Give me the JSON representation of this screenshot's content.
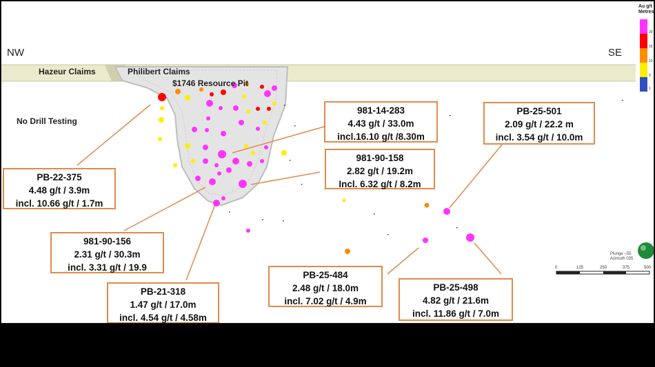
{
  "section": {
    "direction_left": "NW",
    "direction_right": "SE",
    "claim_labels": [
      "Hazeur Claims",
      "Philibert Claims"
    ],
    "pit_label": "$1746 Resource Pit",
    "no_drill_label": "No Drill Testing"
  },
  "legend": {
    "title_line1": "Au g/t",
    "title_line2": "Metres",
    "ticks": [
      "20",
      "15",
      "10",
      "5",
      "1"
    ],
    "colors": [
      "#ff33ff",
      "#ff0000",
      "#ff8c00",
      "#ffee00",
      "#3050c0"
    ]
  },
  "callouts": [
    {
      "id": "PB-22-375",
      "lines": [
        "PB-22-375",
        "4.48 g/t  / 3.9m",
        "incl. 10.66 g/t / 1.7m"
      ]
    },
    {
      "id": "981-14-283",
      "lines": [
        "981-14-283",
        "4.43 g/t / 33.0m",
        "incl.16.10 g/t /8.30m"
      ]
    },
    {
      "id": "PB-25-501",
      "lines": [
        "PB-25-501",
        "2.09 g/t / 22.2 m",
        "incl. 3.54 g/t / 10.0m"
      ]
    },
    {
      "id": "981-90-158",
      "lines": [
        "981-90-158",
        "2.82 g/t / 19.2m",
        "Incl. 6.32 g/t / 8.2m"
      ]
    },
    {
      "id": "981-90-156",
      "lines": [
        "981-90-156",
        "2.31 g/t  / 30.3m",
        "incl. 3.31 g/t / 19.9"
      ]
    },
    {
      "id": "PB-21-318",
      "lines": [
        "PB-21-318",
        "1.47 g/t / 17.0m",
        "incl. 4.54 g/t / 4.58m"
      ]
    },
    {
      "id": "PB-25-484",
      "lines": [
        "PB-25-484",
        "2.48 g/t  / 18.0m",
        "incl. 7.02 g/t / 4.9m"
      ]
    },
    {
      "id": "PB-25-498",
      "lines": [
        "PB-25-498",
        "4.82 g/t / 21.6m",
        "incl. 11.86 g/t / 7.0m"
      ]
    }
  ],
  "plunge_text": [
    "Plunge ~55",
    "Azimuth 035"
  ],
  "scale_ticks": [
    "0",
    "125",
    "250",
    "375",
    "500"
  ]
}
